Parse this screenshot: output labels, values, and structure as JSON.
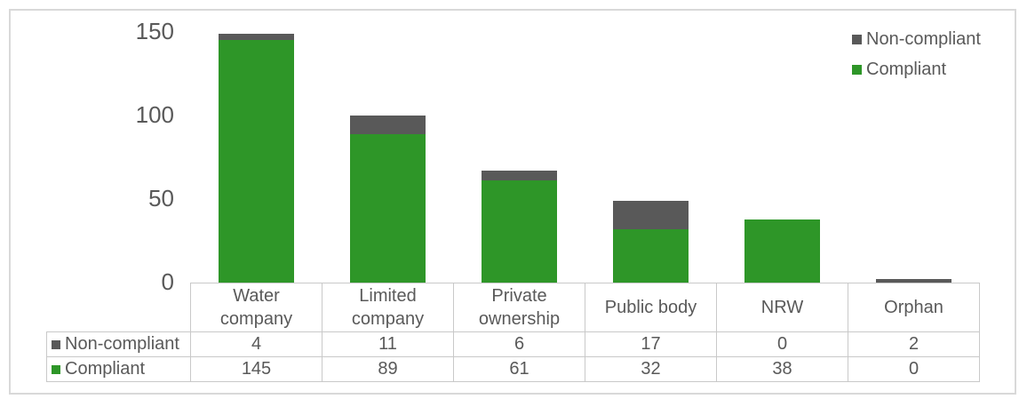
{
  "chart_data": {
    "type": "bar",
    "stacked": true,
    "title": "",
    "xlabel": "",
    "ylabel": "",
    "categories": [
      "Water company",
      "Limited company",
      "Private ownership",
      "Public body",
      "NRW",
      "Orphan"
    ],
    "series": [
      {
        "name": "Non-compliant",
        "color": "#595959",
        "values": [
          4,
          11,
          6,
          17,
          0,
          2
        ]
      },
      {
        "name": "Compliant",
        "color": "#2e9628",
        "values": [
          145,
          89,
          61,
          32,
          38,
          0
        ]
      }
    ],
    "ylim": [
      0,
      150
    ],
    "yticks": [
      0,
      50,
      100,
      150
    ],
    "grid": false,
    "legend_position": "top-right",
    "data_table_shown": true,
    "text_color": "#595959",
    "table_border_color": "#c9c9c9",
    "frame_border_color": "#d9d9d9"
  }
}
